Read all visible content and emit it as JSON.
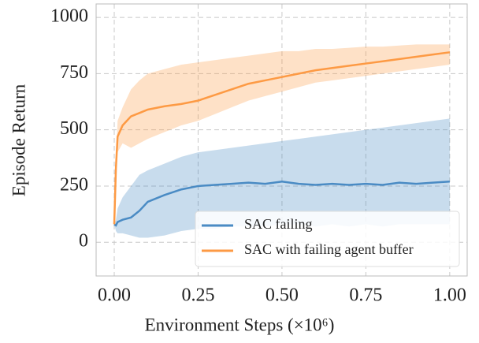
{
  "chart_data": {
    "type": "line",
    "xlabel": "Environment Steps (×10⁶)",
    "ylabel": "Episode Return",
    "x": [
      0,
      0.005,
      0.01,
      0.025,
      0.05,
      0.075,
      0.1,
      0.15,
      0.2,
      0.25,
      0.3,
      0.35,
      0.4,
      0.45,
      0.5,
      0.55,
      0.6,
      0.65,
      0.7,
      0.75,
      0.8,
      0.85,
      0.9,
      0.95,
      1.0
    ],
    "series": [
      {
        "name": "SAC failing",
        "color": "#4a8bc4",
        "values": [
          80,
          75,
          90,
          100,
          110,
          140,
          180,
          210,
          235,
          250,
          255,
          260,
          265,
          260,
          270,
          260,
          255,
          260,
          255,
          260,
          255,
          265,
          260,
          265,
          270
        ],
        "lower": [
          80,
          50,
          40,
          40,
          30,
          20,
          20,
          30,
          50,
          60,
          60,
          70,
          70,
          70,
          80,
          80,
          70,
          80,
          70,
          80,
          70,
          80,
          80,
          80,
          80
        ],
        "upper": [
          80,
          100,
          150,
          200,
          250,
          300,
          320,
          350,
          380,
          400,
          410,
          420,
          430,
          440,
          450,
          460,
          470,
          480,
          490,
          500,
          510,
          520,
          530,
          540,
          550
        ]
      },
      {
        "name": "SAC with failing agent buffer",
        "color": "#fd9a44",
        "values": [
          80,
          330,
          470,
          520,
          560,
          575,
          590,
          605,
          615,
          630,
          655,
          680,
          705,
          720,
          735,
          750,
          765,
          775,
          785,
          795,
          805,
          815,
          825,
          835,
          845
        ],
        "lower": [
          80,
          300,
          400,
          440,
          420,
          440,
          460,
          490,
          520,
          540,
          570,
          600,
          630,
          650,
          670,
          690,
          710,
          720,
          730,
          740,
          750,
          760,
          770,
          780,
          790
        ],
        "upper": [
          80,
          360,
          540,
          600,
          680,
          720,
          750,
          770,
          790,
          800,
          810,
          820,
          830,
          840,
          850,
          850,
          860,
          860,
          865,
          870,
          870,
          875,
          880,
          880,
          880
        ]
      }
    ],
    "xlim": [
      -0.054,
      1.052
    ],
    "ylim": [
      -150,
      1060
    ],
    "xticks": [
      {
        "value": 0,
        "label": "0.00"
      },
      {
        "value": 0.25,
        "label": "0.25"
      },
      {
        "value": 0.5,
        "label": "0.50"
      },
      {
        "value": 0.75,
        "label": "0.75"
      },
      {
        "value": 1,
        "label": "1.00"
      }
    ],
    "yticks": [
      0,
      250,
      500,
      750,
      1000
    ],
    "grid": true,
    "legend": "lower right"
  }
}
